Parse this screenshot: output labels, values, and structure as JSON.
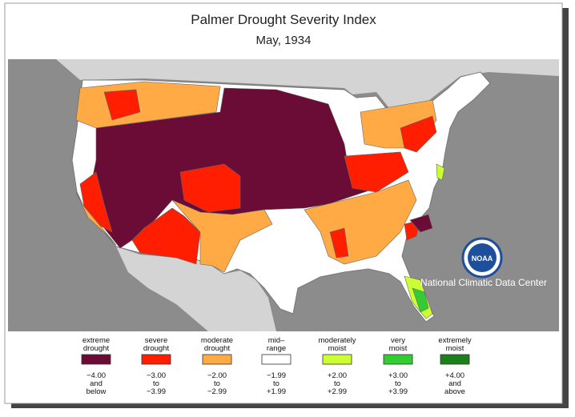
{
  "header": {
    "title": "Palmer Drought Severity Index",
    "subtitle": "May, 1934"
  },
  "logo": {
    "emblem": "NOAA",
    "caption": "National Climatic Data Center"
  },
  "legend": {
    "items": [
      {
        "label": [
          "extreme",
          "drought"
        ],
        "color": "#6b0c36",
        "range": [
          "−4.00",
          "and",
          "below"
        ]
      },
      {
        "label": [
          "severe",
          "drought"
        ],
        "color": "#ff1e00",
        "range": [
          "−3.00",
          "to",
          "−3.99"
        ]
      },
      {
        "label": [
          "moderate",
          "drought"
        ],
        "color": "#ffaa45",
        "range": [
          "−2.00",
          "to",
          "−2.99"
        ]
      },
      {
        "label": [
          "mid–",
          "range"
        ],
        "color": "#ffffff",
        "range": [
          "−1.99",
          "to",
          "+1.99"
        ]
      },
      {
        "label": [
          "moderately",
          "moist"
        ],
        "color": "#ccff33",
        "range": [
          "+2.00",
          "to",
          "+2.99"
        ]
      },
      {
        "label": [
          "very",
          "moist"
        ],
        "color": "#33cc33",
        "range": [
          "+3.00",
          "to",
          "+3.99"
        ]
      },
      {
        "label": [
          "extremely",
          "moist"
        ],
        "color": "#1b7f1b",
        "range": [
          "+4.00",
          "and",
          "above"
        ]
      }
    ]
  }
}
